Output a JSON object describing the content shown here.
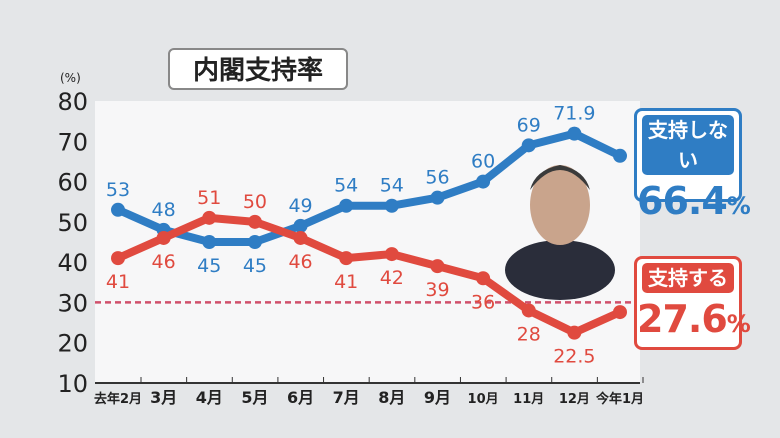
{
  "chart_data": {
    "type": "line",
    "title": "内閣支持率",
    "ylabel": "(%)",
    "ylim": [
      10,
      80
    ],
    "yticks": [
      10,
      20,
      30,
      40,
      50,
      60,
      70,
      80
    ],
    "categories": [
      "去年2月",
      "3月",
      "4月",
      "5月",
      "6月",
      "7月",
      "8月",
      "9月",
      "10月",
      "11月",
      "12月",
      "今年1月"
    ],
    "reference_line": {
      "value": 30,
      "style": "dashed"
    },
    "grid": false,
    "series": [
      {
        "name": "支持しない",
        "color": "#2f7dc4",
        "values": [
          53,
          48,
          45,
          45,
          49,
          54,
          54,
          56,
          60,
          69,
          71.9,
          66.4
        ],
        "labels": [
          "53",
          "48",
          "45",
          "45",
          "49",
          "54",
          "54",
          "56",
          "60",
          "69",
          "71.9",
          ""
        ],
        "latest": "66.4",
        "latest_unit": "%"
      },
      {
        "name": "支持する",
        "color": "#e04a3f",
        "values": [
          41,
          46,
          51,
          50,
          46,
          41,
          42,
          39,
          36,
          28,
          22.5,
          27.6
        ],
        "labels": [
          "41",
          "46",
          "51",
          "50",
          "46",
          "41",
          "42",
          "39",
          "36",
          "28",
          "22.5",
          ""
        ],
        "latest": "27.6",
        "latest_unit": "%"
      }
    ]
  }
}
